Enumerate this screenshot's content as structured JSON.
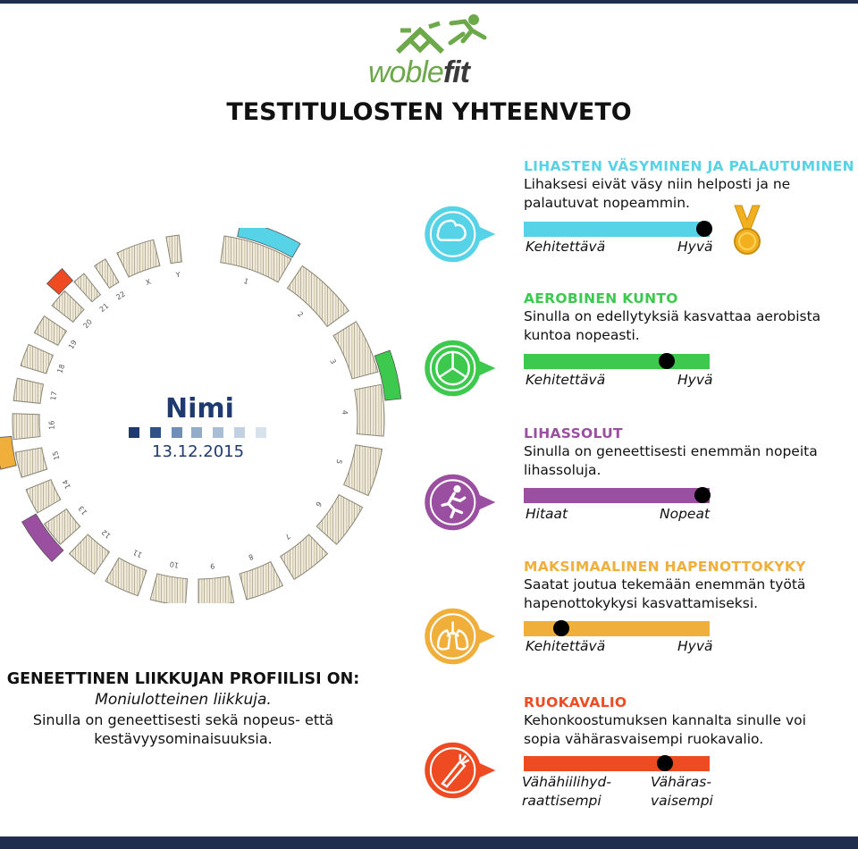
{
  "logo": {
    "word_part1": "woble",
    "word_part2": "fit"
  },
  "page_title": "TESTITULOSTEN YHTEENVETO",
  "person": {
    "name": "Nimi",
    "date": "13.12.2015"
  },
  "chromosome_labels": [
    "1",
    "2",
    "3",
    "4",
    "5",
    "6",
    "7",
    "8",
    "9",
    "10",
    "11",
    "12",
    "13",
    "14",
    "15",
    "16",
    "17",
    "18",
    "19",
    "20",
    "21",
    "22",
    "X",
    "Y"
  ],
  "profile": {
    "heading": "GENEETTINEN LIIKKUJAN PROFIILISI ON:",
    "type": "Moniulotteinen liikkuja.",
    "description": "Sinulla on geneettisesti sekä nopeus- että kestävyysominaisuuksia."
  },
  "results": [
    {
      "title": "LIHASTEN VÄSYMINEN JA PALAUTUMINEN",
      "text": "Lihaksesi eivät väsy niin helposti ja ne palautuvat nopeammin.",
      "left_label": "Kehitettävä",
      "right_label": "Hyvä",
      "value": 0.97,
      "color": "#56d3e6",
      "icon": "flexed-arm-icon"
    },
    {
      "title": "AEROBINEN KUNTO",
      "text": "Sinulla on edellytyksiä kasvattaa aerobista kuntoa nopeasti.",
      "left_label": "Kehitettävä",
      "right_label": "Hyvä",
      "value": 0.77,
      "color": "#3cc94e",
      "icon": "triathlon-icon"
    },
    {
      "title": "LIHASSOLUT",
      "text": "Sinulla on geneettisesti enemmän nopeita lihassoluja.",
      "left_label": "Hitaat",
      "right_label": "Nopeat",
      "value": 0.96,
      "color": "#9b4fa0",
      "icon": "runner-icon"
    },
    {
      "title": "MAKSIMAALINEN HAPENOTTOKYKY",
      "text": "Saatat joutua tekemään enemmän työtä hapenottokykysi kasvattamiseksi.",
      "left_label": "Kehitettävä",
      "right_label": "Hyvä",
      "value": 0.2,
      "color": "#f0ae3a",
      "icon": "lungs-icon"
    },
    {
      "title": "RUOKAVALIO",
      "text": "Kehonkoostumuksen kannalta sinulle voi sopia vähärasvaisempi ruokavalio.",
      "left_label": "Vähähiilihyd- raattisempi",
      "right_label": "Vähäras- vaisempi",
      "value": 0.76,
      "color": "#ee4b22",
      "icon": "carrot-icon"
    }
  ],
  "colors": {
    "navy": "#1f2d4e",
    "dark_blue": "#1f3a6e",
    "medal_gold": "#f2b01e"
  }
}
